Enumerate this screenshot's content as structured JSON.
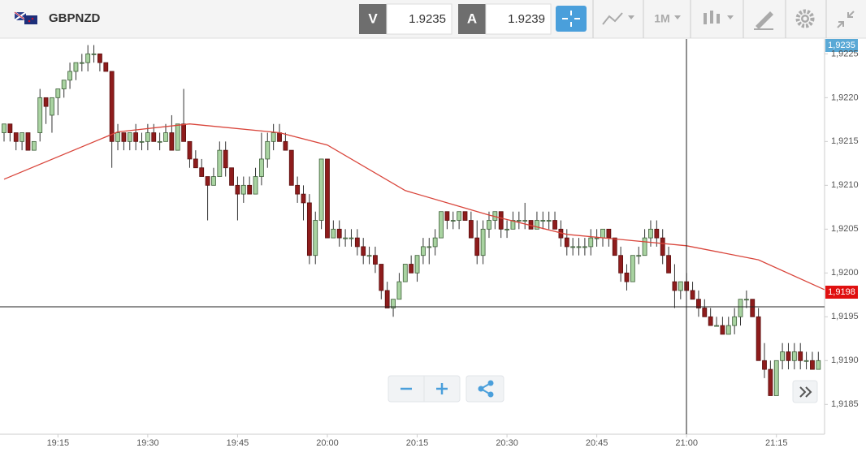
{
  "toolbar": {
    "symbol": "GBPNZD",
    "bid_label": "V",
    "bid": "1.9235",
    "ask_label": "A",
    "ask": "1.9239",
    "timeframe": "1M"
  },
  "price_tags": {
    "top": "1,9235",
    "last": "1,9198"
  },
  "chart_data": {
    "type": "candlestick",
    "categories": [
      "19:06",
      "19:07",
      "19:08",
      "19:09",
      "19:10",
      "19:11",
      "19:12",
      "19:13",
      "19:14",
      "19:15",
      "19:16",
      "19:17",
      "19:18",
      "19:19",
      "19:20",
      "19:21",
      "19:22",
      "19:23",
      "19:24",
      "19:25",
      "19:26",
      "19:27",
      "19:28",
      "19:29",
      "19:30",
      "19:31",
      "19:32",
      "19:33",
      "19:34",
      "19:35",
      "19:36",
      "19:37",
      "19:38",
      "19:39",
      "19:40",
      "19:41",
      "19:42",
      "19:43",
      "19:44",
      "19:45",
      "19:46",
      "19:47",
      "19:48",
      "19:49",
      "19:50",
      "19:51",
      "19:52",
      "19:53",
      "19:54",
      "19:55",
      "19:56",
      "19:57",
      "19:58",
      "19:59",
      "20:00",
      "20:01",
      "20:02",
      "20:03",
      "20:04",
      "20:05",
      "20:06",
      "20:07",
      "20:08",
      "20:09",
      "20:10",
      "20:11",
      "20:12",
      "20:13",
      "20:14",
      "20:15",
      "20:16",
      "20:17",
      "20:18",
      "20:19",
      "20:20",
      "20:21",
      "20:22",
      "20:23",
      "20:24",
      "20:25",
      "20:26",
      "20:27",
      "20:28",
      "20:29",
      "20:30",
      "20:31",
      "20:32",
      "20:33",
      "20:34",
      "20:35",
      "20:36",
      "20:37",
      "20:38",
      "20:39",
      "20:40",
      "20:41",
      "20:42",
      "20:43",
      "20:44",
      "20:45",
      "20:46",
      "20:47",
      "20:48",
      "20:49",
      "20:50",
      "20:51",
      "20:52",
      "20:53",
      "20:54",
      "20:55",
      "20:56",
      "20:57",
      "20:58",
      "20:59",
      "21:00",
      "21:01",
      "21:02",
      "21:03",
      "21:04",
      "21:05",
      "21:06",
      "21:07",
      "21:08",
      "21:09",
      "21:10",
      "21:11",
      "21:12",
      "21:13",
      "21:14",
      "21:15",
      "21:16",
      "21:17",
      "21:18",
      "21:19",
      "21:20",
      "21:21",
      "21:22",
      "21:23"
    ],
    "open": [
      1.9216,
      1.9217,
      1.9216,
      1.9215,
      1.9216,
      1.9214,
      1.9216,
      1.922,
      1.9218,
      1.922,
      1.9221,
      1.9222,
      1.9223,
      1.9224,
      1.9224,
      1.9225,
      1.9225,
      1.9224,
      1.9223,
      1.9215,
      1.9216,
      1.9215,
      1.9216,
      1.9215,
      1.9215,
      1.9216,
      1.9215,
      1.9215,
      1.9216,
      1.9214,
      1.9217,
      1.9215,
      1.9213,
      1.9212,
      1.9211,
      1.921,
      1.9211,
      1.9214,
      1.9212,
      1.921,
      1.9209,
      1.921,
      1.9209,
      1.9211,
      1.9213,
      1.9215,
      1.9216,
      1.9215,
      1.9214,
      1.921,
      1.9209,
      1.9208,
      1.9202,
      1.9206,
      1.9213,
      1.9204,
      1.9205,
      1.9204,
      1.9204,
      1.9204,
      1.9203,
      1.9202,
      1.9202,
      1.9201,
      1.9198,
      1.9196,
      1.9197,
      1.9199,
      1.9201,
      1.92,
      1.9202,
      1.9203,
      1.9203,
      1.9204,
      1.9207,
      1.9206,
      1.9206,
      1.9207,
      1.9206,
      1.9204,
      1.9202,
      1.9205,
      1.9206,
      1.9207,
      1.9205,
      1.9205,
      1.9206,
      1.9206,
      1.9206,
      1.9205,
      1.9206,
      1.9206,
      1.9206,
      1.9205,
      1.9204,
      1.9203,
      1.9203,
      1.9203,
      1.9203,
      1.9204,
      1.9204,
      1.9205,
      1.9204,
      1.9202,
      1.92,
      1.9199,
      1.9202,
      1.9202,
      1.9204,
      1.9205,
      1.9204,
      1.9202,
      1.9199,
      1.9198,
      1.9199,
      1.9198,
      1.9197,
      1.9196,
      1.9195,
      1.9194,
      1.9194,
      1.9193,
      1.9194,
      1.9195,
      1.9197,
      1.9197,
      1.9195,
      1.919,
      1.9189,
      1.9186,
      1.919,
      1.9191,
      1.919,
      1.9191,
      1.919,
      1.919,
      1.9189,
      1.919
    ],
    "high": [
      1.9217,
      1.9217,
      1.9216,
      1.9216,
      1.9216,
      1.9215,
      1.9221,
      1.922,
      1.922,
      1.9221,
      1.9222,
      1.9224,
      1.9224,
      1.9225,
      1.9226,
      1.9226,
      1.9225,
      1.9224,
      1.9223,
      1.9217,
      1.9216,
      1.9216,
      1.9217,
      1.9216,
      1.9217,
      1.9217,
      1.9216,
      1.9217,
      1.9218,
      1.9217,
      1.9221,
      1.9215,
      1.9214,
      1.9213,
      1.9211,
      1.9212,
      1.9215,
      1.9215,
      1.9212,
      1.9211,
      1.9211,
      1.9211,
      1.9212,
      1.9216,
      1.9216,
      1.9217,
      1.9217,
      1.9216,
      1.9214,
      1.9211,
      1.921,
      1.9209,
      1.9207,
      1.9213,
      1.9213,
      1.9206,
      1.9206,
      1.9205,
      1.9205,
      1.9205,
      1.9204,
      1.9203,
      1.9203,
      1.9201,
      1.9199,
      1.9197,
      1.92,
      1.9201,
      1.9202,
      1.9202,
      1.9204,
      1.9204,
      1.9205,
      1.9207,
      1.9207,
      1.9207,
      1.9207,
      1.9207,
      1.9207,
      1.9206,
      1.9206,
      1.9207,
      1.9207,
      1.9207,
      1.9206,
      1.9207,
      1.9207,
      1.9208,
      1.9206,
      1.9207,
      1.9207,
      1.9207,
      1.9207,
      1.9206,
      1.9205,
      1.9204,
      1.9204,
      1.9204,
      1.9205,
      1.9205,
      1.9205,
      1.9205,
      1.9204,
      1.9203,
      1.9201,
      1.9202,
      1.9203,
      1.9205,
      1.9206,
      1.9206,
      1.9205,
      1.9203,
      1.9201,
      1.9199,
      1.92,
      1.9199,
      1.9198,
      1.9197,
      1.9196,
      1.9195,
      1.9195,
      1.9195,
      1.9196,
      1.9197,
      1.9198,
      1.9197,
      1.9196,
      1.9192,
      1.919,
      1.919,
      1.9192,
      1.9192,
      1.9192,
      1.9192,
      1.9191,
      1.9191,
      1.9191,
      1.919
    ],
    "low": [
      1.9215,
      1.9215,
      1.9214,
      1.9214,
      1.9214,
      1.9214,
      1.9215,
      1.9217,
      1.9216,
      1.9218,
      1.922,
      1.9221,
      1.9222,
      1.9223,
      1.9223,
      1.9224,
      1.9223,
      1.9223,
      1.9212,
      1.9214,
      1.9214,
      1.9214,
      1.9214,
      1.9214,
      1.9214,
      1.9215,
      1.9214,
      1.9215,
      1.9214,
      1.9214,
      1.9215,
      1.9212,
      1.9212,
      1.9211,
      1.9206,
      1.921,
      1.9211,
      1.9211,
      1.921,
      1.9206,
      1.9208,
      1.9209,
      1.9209,
      1.921,
      1.9212,
      1.9214,
      1.9215,
      1.9214,
      1.921,
      1.9208,
      1.9206,
      1.9201,
      1.9201,
      1.9205,
      1.9204,
      1.9204,
      1.9203,
      1.9203,
      1.9203,
      1.9202,
      1.9201,
      1.9201,
      1.92,
      1.9197,
      1.9196,
      1.9195,
      1.9197,
      1.9199,
      1.92,
      1.9199,
      1.9201,
      1.9201,
      1.9202,
      1.9204,
      1.9205,
      1.9205,
      1.9205,
      1.9206,
      1.9204,
      1.9201,
      1.9201,
      1.9204,
      1.9205,
      1.9204,
      1.9204,
      1.9205,
      1.9205,
      1.9205,
      1.9205,
      1.9205,
      1.9205,
      1.9205,
      1.9205,
      1.9203,
      1.9202,
      1.9202,
      1.9202,
      1.9202,
      1.9202,
      1.9203,
      1.9203,
      1.9203,
      1.9202,
      1.9199,
      1.9198,
      1.9199,
      1.9201,
      1.9202,
      1.9203,
      1.9203,
      1.9201,
      1.92,
      1.9196,
      1.9197,
      1.9198,
      1.9197,
      1.9195,
      1.9195,
      1.9194,
      1.9194,
      1.9193,
      1.9193,
      1.9193,
      1.9194,
      1.9196,
      1.9195,
      1.919,
      1.9188,
      1.9186,
      1.9186,
      1.9189,
      1.9189,
      1.9189,
      1.9189,
      1.9189,
      1.9189,
      1.9189,
      1.9187
    ],
    "close": [
      1.9217,
      1.9216,
      1.9215,
      1.9216,
      1.9214,
      1.9215,
      1.922,
      1.9219,
      1.922,
      1.9221,
      1.9222,
      1.9223,
      1.9224,
      1.9224,
      1.9225,
      1.9225,
      1.9224,
      1.9223,
      1.9215,
      1.9216,
      1.9215,
      1.9216,
      1.9215,
      1.9215,
      1.9216,
      1.9215,
      1.9215,
      1.9216,
      1.9214,
      1.9217,
      1.9215,
      1.9213,
      1.9212,
      1.9211,
      1.921,
      1.9211,
      1.9214,
      1.9212,
      1.921,
      1.9209,
      1.921,
      1.9209,
      1.9211,
      1.9213,
      1.9215,
      1.9216,
      1.9215,
      1.9214,
      1.921,
      1.9209,
      1.9208,
      1.9202,
      1.9206,
      1.9213,
      1.9204,
      1.9205,
      1.9204,
      1.9204,
      1.9204,
      1.9203,
      1.9202,
      1.9202,
      1.9201,
      1.9198,
      1.9196,
      1.9197,
      1.9199,
      1.9201,
      1.92,
      1.9202,
      1.9203,
      1.9203,
      1.9204,
      1.9207,
      1.9206,
      1.9206,
      1.9207,
      1.9206,
      1.9204,
      1.9202,
      1.9205,
      1.9206,
      1.9207,
      1.9205,
      1.9205,
      1.9206,
      1.9206,
      1.9206,
      1.9205,
      1.9206,
      1.9206,
      1.9206,
      1.9205,
      1.9204,
      1.9203,
      1.9203,
      1.9203,
      1.9203,
      1.9204,
      1.9204,
      1.9205,
      1.9204,
      1.9202,
      1.92,
      1.9199,
      1.9202,
      1.9202,
      1.9204,
      1.9205,
      1.9204,
      1.9202,
      1.92,
      1.9198,
      1.9199,
      1.9198,
      1.9197,
      1.9196,
      1.9195,
      1.9194,
      1.9194,
      1.9193,
      1.9194,
      1.9195,
      1.9197,
      1.9197,
      1.9195,
      1.919,
      1.9189,
      1.9186,
      1.919,
      1.9191,
      1.919,
      1.9191,
      1.919,
      1.919,
      1.9189,
      1.919,
      1.9187
    ],
    "up_color": "#a9d3a1",
    "down_color": "#8e1c1c",
    "moving_average": {
      "color": "#d9453b",
      "x": [
        "19:06",
        "19:25",
        "19:37",
        "19:52",
        "20:00",
        "20:13",
        "20:27",
        "20:40",
        "21:00",
        "21:12",
        "21:23"
      ],
      "values": [
        1.92107,
        1.92161,
        1.9217,
        1.9216,
        1.92146,
        1.92094,
        1.92066,
        1.92044,
        1.92031,
        1.92015,
        1.91981
      ]
    },
    "ylim": [
      1.91816,
      1.92267
    ],
    "yticks": [
      {
        "value": 1.9185,
        "label": "1,9185"
      },
      {
        "value": 1.919,
        "label": "1,9190"
      },
      {
        "value": 1.9195,
        "label": "1,9195"
      },
      {
        "value": 1.92,
        "label": "1,9200"
      },
      {
        "value": 1.9205,
        "label": "1,9205"
      },
      {
        "value": 1.921,
        "label": "1,9210"
      },
      {
        "value": 1.9215,
        "label": "1,9215"
      },
      {
        "value": 1.922,
        "label": "1,9220"
      },
      {
        "value": 1.9225,
        "label": "1,9225"
      }
    ],
    "xticks": [
      "19:15",
      "19:30",
      "19:45",
      "20:00",
      "20:15",
      "20:30",
      "20:45",
      "21:00",
      "21:15"
    ],
    "grid": false
  }
}
